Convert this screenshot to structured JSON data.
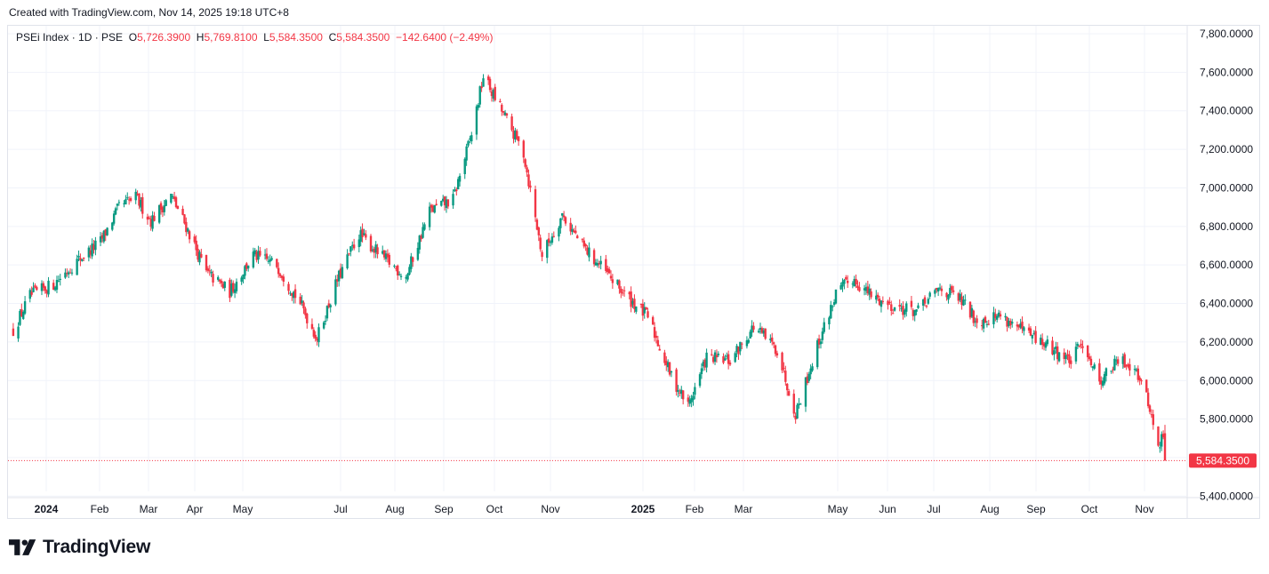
{
  "header": {
    "created_text": "Created with TradingView.com, Nov 14, 2025 19:18 UTC+8"
  },
  "legend": {
    "symbol": "PSEi Index · 1D · PSE",
    "open_label": "O",
    "open_value": "5,726.3900",
    "high_label": "H",
    "high_value": "5,769.8100",
    "low_label": "L",
    "low_value": "5,584.3500",
    "close_label": "C",
    "close_value": "5,584.3500",
    "change": "−142.6400 (−2.49%)"
  },
  "footer": {
    "brand": "TradingView",
    "logo_icon": "tradingview-logo-icon"
  },
  "colors": {
    "up": "#089981",
    "down": "#f23645",
    "grid": "#f0f3fa",
    "text": "#131722",
    "price_line": "#f23645"
  },
  "chart_data": {
    "type": "candlestick",
    "title": "PSEi Index · 1D · PSE",
    "xlabel": "",
    "ylabel": "",
    "ylim": [
      5350,
      7850
    ],
    "y_ticks": [
      "7,800.0000",
      "7,600.0000",
      "7,400.0000",
      "7,200.0000",
      "7,000.0000",
      "6,800.0000",
      "6,600.0000",
      "6,400.0000",
      "6,200.0000",
      "6,000.0000",
      "5,800.0000",
      "5,400.0000"
    ],
    "x_ticks": [
      "2024",
      "Feb",
      "Mar",
      "Apr",
      "May",
      "Jul",
      "Aug",
      "Sep",
      "Oct",
      "Nov",
      "2025",
      "Feb",
      "Mar",
      "May",
      "Jun",
      "Jul",
      "Aug",
      "Sep",
      "Oct",
      "Nov"
    ],
    "grid": true,
    "last_price_label": "5,584.3500",
    "last_price": 5584.35,
    "series": [
      {
        "dates": [
          "2023-12-29",
          "2024-01-08",
          "2024-01-22",
          "2024-02-05",
          "2024-02-19",
          "2024-03-01",
          "2024-03-11",
          "2024-03-20",
          "2024-04-01",
          "2024-04-10",
          "2024-04-22",
          "2024-05-06",
          "2024-05-20",
          "2024-06-03",
          "2024-06-17",
          "2024-06-27",
          "2024-07-09",
          "2024-07-22",
          "2024-08-05",
          "2024-08-19",
          "2024-09-02",
          "2024-09-16",
          "2024-09-27",
          "2024-10-04",
          "2024-10-15",
          "2024-10-28",
          "2024-11-08",
          "2024-11-20",
          "2024-12-02",
          "2024-12-16",
          "2024-12-27",
          "2025-01-10",
          "2025-01-24",
          "2025-02-03",
          "2025-02-14",
          "2025-02-28",
          "2025-03-14",
          "2025-03-28",
          "2025-04-08",
          "2025-04-21",
          "2025-05-02",
          "2025-05-12",
          "2025-05-23",
          "2025-06-06",
          "2025-06-20",
          "2025-07-03",
          "2025-07-15",
          "2025-07-25",
          "2025-08-08",
          "2025-08-22",
          "2025-09-05",
          "2025-09-19",
          "2025-09-26",
          "2025-10-06",
          "2025-10-17",
          "2025-10-27",
          "2025-11-05",
          "2025-11-10",
          "2025-11-13",
          "2025-11-14"
        ],
        "close": [
          6260,
          6440,
          6500,
          6620,
          6720,
          6900,
          6950,
          6830,
          6960,
          6800,
          6560,
          6460,
          6650,
          6600,
          6400,
          6220,
          6520,
          6760,
          6640,
          6540,
          6880,
          6940,
          7280,
          7580,
          7400,
          7180,
          6650,
          6860,
          6700,
          6560,
          6450,
          6330,
          6020,
          5870,
          6120,
          6100,
          6280,
          6160,
          5830,
          6180,
          6450,
          6530,
          6440,
          6380,
          6360,
          6480,
          6420,
          6310,
          6340,
          6250,
          6180,
          6100,
          6200,
          6000,
          6100,
          6080,
          5860,
          5640,
          5726.39,
          5584.35
        ]
      }
    ]
  }
}
